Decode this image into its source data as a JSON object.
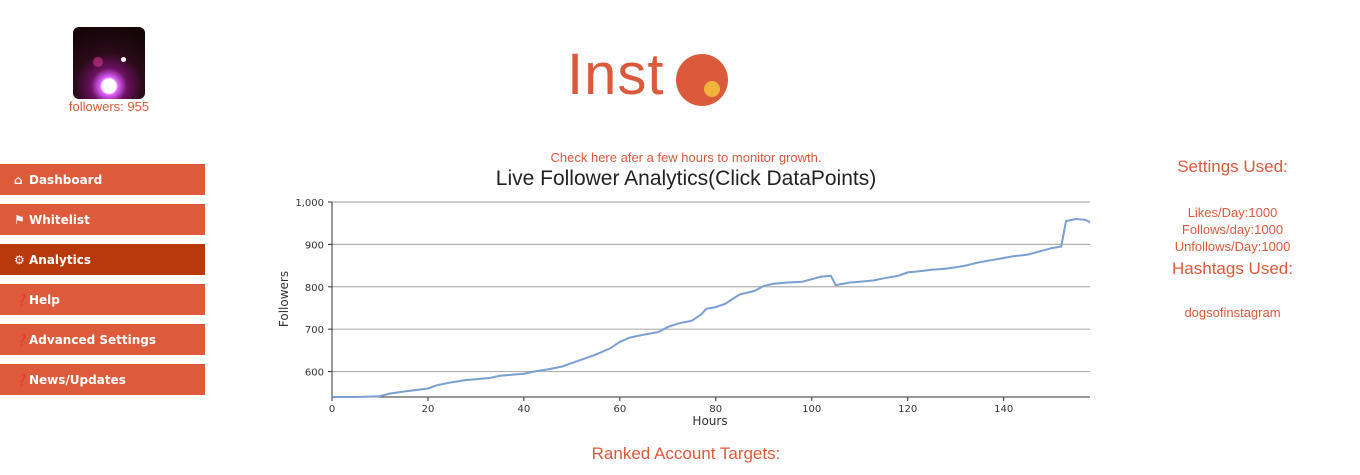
{
  "profile": {
    "followers_text": "followers: 955"
  },
  "logo": {
    "text": "Inst"
  },
  "nav": [
    {
      "icon": "home-icon",
      "label": "Dashboard",
      "active": false
    },
    {
      "icon": "flag-icon",
      "label": "Whitelist",
      "active": false
    },
    {
      "icon": "gear-icon",
      "label": "Analytics",
      "active": true
    },
    {
      "icon": "question-circle-icon",
      "label": "Help",
      "active": false
    },
    {
      "icon": "question-circle-icon",
      "label": "Advanced Settings",
      "active": false
    },
    {
      "icon": "question-circle-icon",
      "label": "News/Updates",
      "active": false
    }
  ],
  "main": {
    "check_message": "Check here afer a few hours to monitor growth.",
    "ranked_title": "Ranked Account Targets:"
  },
  "settings": {
    "title": "Settings Used:",
    "likes": "Likes/Day:1000",
    "follows": "Follows/day:1000",
    "unfollows": "Unfollows/Day:1000",
    "hashtags_title": "Hashtags Used:",
    "hashtag": "dogsofinstagram"
  },
  "colors": {
    "accent": "#db5a3c",
    "nav_bg": "#dd5a3b",
    "nav_active": "#b83a0c",
    "line": "#7b9fd1"
  },
  "chart_data": {
    "type": "line",
    "title": "Live Follower Analytics(Click DataPoints)",
    "xlabel": "Hours",
    "ylabel": "Followers",
    "xlim": [
      0,
      158
    ],
    "ylim": [
      540,
      1000
    ],
    "xticks": [
      0,
      20,
      40,
      60,
      80,
      100,
      120,
      140
    ],
    "yticks": [
      600,
      700,
      800,
      900,
      1000
    ],
    "ytick_labels": [
      "600",
      "700",
      "800",
      "900",
      "1,000"
    ],
    "grid": true,
    "x": [
      0,
      5,
      10,
      12,
      15,
      18,
      20,
      22,
      25,
      28,
      30,
      33,
      35,
      38,
      40,
      42,
      45,
      48,
      50,
      52,
      55,
      58,
      60,
      62,
      65,
      68,
      70,
      72,
      75,
      77,
      78,
      80,
      82,
      84,
      85,
      88,
      90,
      92,
      95,
      98,
      100,
      102,
      104,
      105,
      108,
      110,
      113,
      115,
      118,
      120,
      122,
      125,
      128,
      130,
      132,
      135,
      138,
      140,
      142,
      145,
      148,
      150,
      152,
      153,
      155,
      157,
      158
    ],
    "y": [
      535,
      536,
      542,
      548,
      553,
      557,
      560,
      568,
      575,
      580,
      582,
      585,
      590,
      593,
      595,
      600,
      605,
      612,
      620,
      628,
      640,
      655,
      670,
      680,
      687,
      693,
      705,
      713,
      720,
      735,
      748,
      752,
      760,
      775,
      782,
      790,
      802,
      807,
      810,
      812,
      818,
      824,
      826,
      804,
      810,
      812,
      815,
      820,
      826,
      834,
      836,
      840,
      843,
      846,
      850,
      858,
      864,
      868,
      872,
      876,
      885,
      891,
      895,
      955,
      960,
      958,
      952
    ]
  }
}
